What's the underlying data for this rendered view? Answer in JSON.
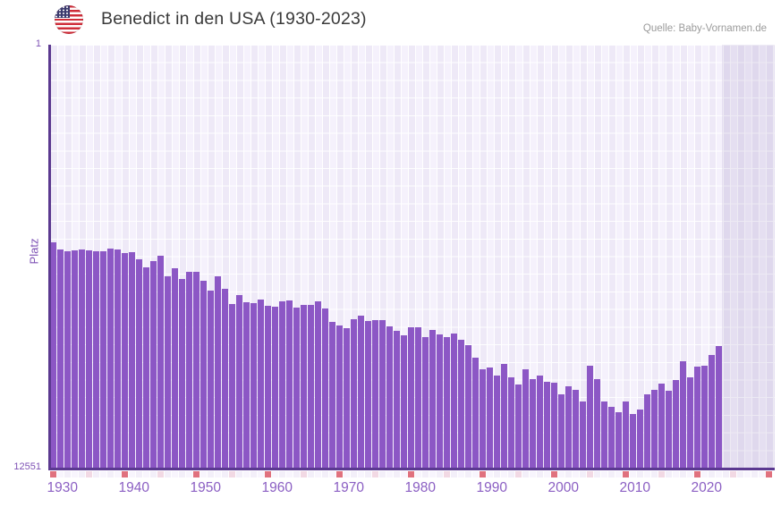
{
  "header": {
    "title": "Benedict in den USA (1930-2023)",
    "flag_icon": "us-flag",
    "source": "Quelle: Baby-Vornamen.de"
  },
  "y_axis": {
    "label": "Platz",
    "top_tick": "1",
    "bottom_tick": "12551"
  },
  "x_axis": {
    "tick_labels": [
      1930,
      1940,
      1950,
      1960,
      1970,
      1980,
      1990,
      2000,
      2010,
      2020
    ],
    "minor_tick_interval": 5,
    "axis_start_year": 1930,
    "axis_end_year": 2030,
    "last_data_year": 2023
  },
  "colors": {
    "bar": "#8c57c5",
    "axis": "#5b3990",
    "tick_text": "#8b5fc3",
    "y_text": "#7e52b5",
    "decade_marker": "#e0717e",
    "five_year_marker": "#f2d9e4",
    "strip_default_a": "#f3eff9",
    "strip_default_b": "#f8f5fd",
    "title_text": "#3a3a3a",
    "source_text": "#9b9b9b"
  },
  "chart_data": {
    "type": "bar",
    "title": "Benedict in den USA (1930-2023)",
    "xlabel": "",
    "ylabel": "Platz",
    "y_scale": "log",
    "ylim": [
      1,
      12551
    ],
    "y_inverted": true,
    "grid": true,
    "legend": false,
    "start_year": 1930,
    "years": [
      1930,
      1931,
      1932,
      1933,
      1934,
      1935,
      1936,
      1937,
      1938,
      1939,
      1940,
      1941,
      1942,
      1943,
      1944,
      1945,
      1946,
      1947,
      1948,
      1949,
      1950,
      1951,
      1952,
      1953,
      1954,
      1955,
      1956,
      1957,
      1958,
      1959,
      1960,
      1961,
      1962,
      1963,
      1964,
      1965,
      1966,
      1967,
      1968,
      1969,
      1970,
      1971,
      1972,
      1973,
      1974,
      1975,
      1976,
      1977,
      1978,
      1979,
      1980,
      1981,
      1982,
      1983,
      1984,
      1985,
      1986,
      1987,
      1988,
      1989,
      1990,
      1991,
      1992,
      1993,
      1994,
      1995,
      1996,
      1997,
      1998,
      1999,
      2000,
      2001,
      2002,
      2003,
      2004,
      2005,
      2006,
      2007,
      2008,
      2009,
      2010,
      2011,
      2012,
      2013,
      2014,
      2015,
      2016,
      2017,
      2018,
      2019,
      2020,
      2021,
      2022,
      2023
    ],
    "values": [
      82,
      96,
      100,
      99,
      97,
      99,
      101,
      100,
      95,
      96,
      104,
      102,
      120,
      143,
      125,
      111,
      175,
      148,
      186,
      160,
      160,
      193,
      240,
      175,
      232,
      328,
      265,
      313,
      319,
      295,
      339,
      346,
      305,
      301,
      353,
      332,
      332,
      307,
      360,
      486,
      526,
      558,
      457,
      422,
      476,
      467,
      467,
      537,
      593,
      655,
      547,
      547,
      682,
      581,
      642,
      682,
      629,
      724,
      816,
      1079,
      1398,
      1343,
      1608,
      1240,
      1673,
      1962,
      1398,
      1741,
      1608,
      1848,
      1886,
      2445,
      2042,
      2212,
      2868,
      1291,
      1741,
      2868,
      3232,
      3644,
      2868,
      3792,
      3432,
      2445,
      2212,
      1924,
      2257,
      1776,
      1168,
      1673,
      1317,
      1280,
      1016,
      832
    ]
  }
}
